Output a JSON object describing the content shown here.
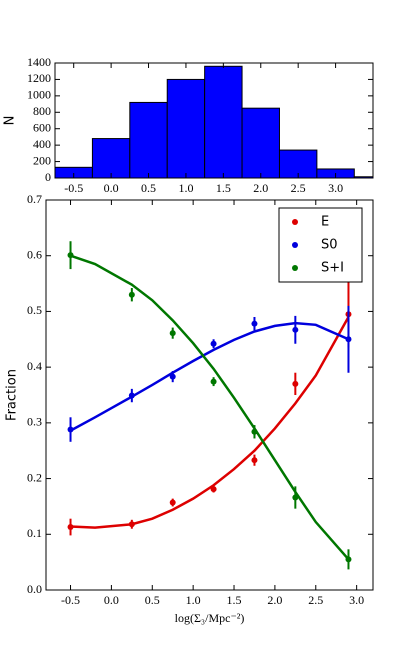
{
  "chart_data": [
    {
      "type": "histogram",
      "ylabel": "N",
      "bins": [
        -0.75,
        -0.25,
        0.25,
        0.75,
        1.25,
        1.75,
        2.25,
        2.75,
        3.25,
        3.75
      ],
      "counts": [
        130,
        480,
        920,
        1200,
        1360,
        850,
        340,
        110,
        15
      ],
      "color": "#0000ff",
      "xlim": [
        -0.75,
        3.5
      ],
      "xticks": [
        -0.5,
        {
          "value": 0,
          "label": "0.0"
        },
        0.5,
        {
          "value": 1,
          "label": "1.0"
        },
        1.5,
        {
          "value": 2,
          "label": "2.0"
        },
        2.5,
        {
          "value": 3,
          "label": "3.0"
        }
      ],
      "ylim": [
        0,
        1400
      ],
      "yticks": [
        0,
        200,
        400,
        600,
        800,
        1000,
        1200,
        1400
      ]
    },
    {
      "type": "errorbar",
      "xlabel": "log(Σ₃/Mpc⁻²)",
      "ylabel": "Fraction",
      "x": [
        -0.5,
        0.25,
        0.75,
        1.25,
        1.75,
        2.25,
        2.9
      ],
      "fit_x": [
        -0.5,
        -0.2,
        0.25,
        0.5,
        0.75,
        1.0,
        1.25,
        1.5,
        1.75,
        2.0,
        2.25,
        2.5,
        2.9
      ],
      "series": [
        {
          "name": "E",
          "color": "#dd0000",
          "values": [
            0.113,
            0.118,
            0.157,
            0.181,
            0.233,
            0.37,
            0.495
          ],
          "errors": [
            0.015,
            0.008,
            0.007,
            0.006,
            0.01,
            0.02,
            0.06
          ],
          "fit": [
            0.114,
            0.112,
            0.118,
            0.128,
            0.144,
            0.164,
            0.188,
            0.217,
            0.25,
            0.29,
            0.335,
            0.385,
            0.49
          ]
        },
        {
          "name": "S0",
          "color": "#0000dd",
          "values": [
            0.288,
            0.349,
            0.383,
            0.442,
            0.478,
            0.467,
            0.45
          ],
          "errors": [
            0.022,
            0.012,
            0.01,
            0.008,
            0.012,
            0.025,
            0.06
          ],
          "fit": [
            0.286,
            0.31,
            0.347,
            0.368,
            0.39,
            0.411,
            0.431,
            0.449,
            0.464,
            0.474,
            0.479,
            0.476,
            0.45
          ]
        },
        {
          "name": "S+I",
          "color": "#007700",
          "values": [
            0.601,
            0.53,
            0.461,
            0.374,
            0.284,
            0.166,
            0.055
          ],
          "errors": [
            0.025,
            0.012,
            0.01,
            0.008,
            0.012,
            0.02,
            0.018
          ],
          "fit": [
            0.6,
            0.585,
            0.548,
            0.52,
            0.484,
            0.443,
            0.397,
            0.345,
            0.29,
            0.233,
            0.176,
            0.122,
            0.055
          ]
        }
      ],
      "legend": "upper right",
      "xlim": [
        -0.8,
        3.2
      ],
      "xticks": [
        -0.5,
        {
          "value": 0,
          "label": "0.0"
        },
        0.5,
        {
          "value": 1,
          "label": "1.0"
        },
        1.5,
        {
          "value": 2,
          "label": "2.0"
        },
        2.5,
        {
          "value": 3,
          "label": "3.0"
        }
      ],
      "ylim": [
        0,
        0.7
      ],
      "yticks": [
        {
          "value": 0,
          "label": "0.0"
        },
        0.1,
        0.2,
        0.3,
        0.4,
        0.5,
        0.6,
        0.7
      ]
    }
  ]
}
